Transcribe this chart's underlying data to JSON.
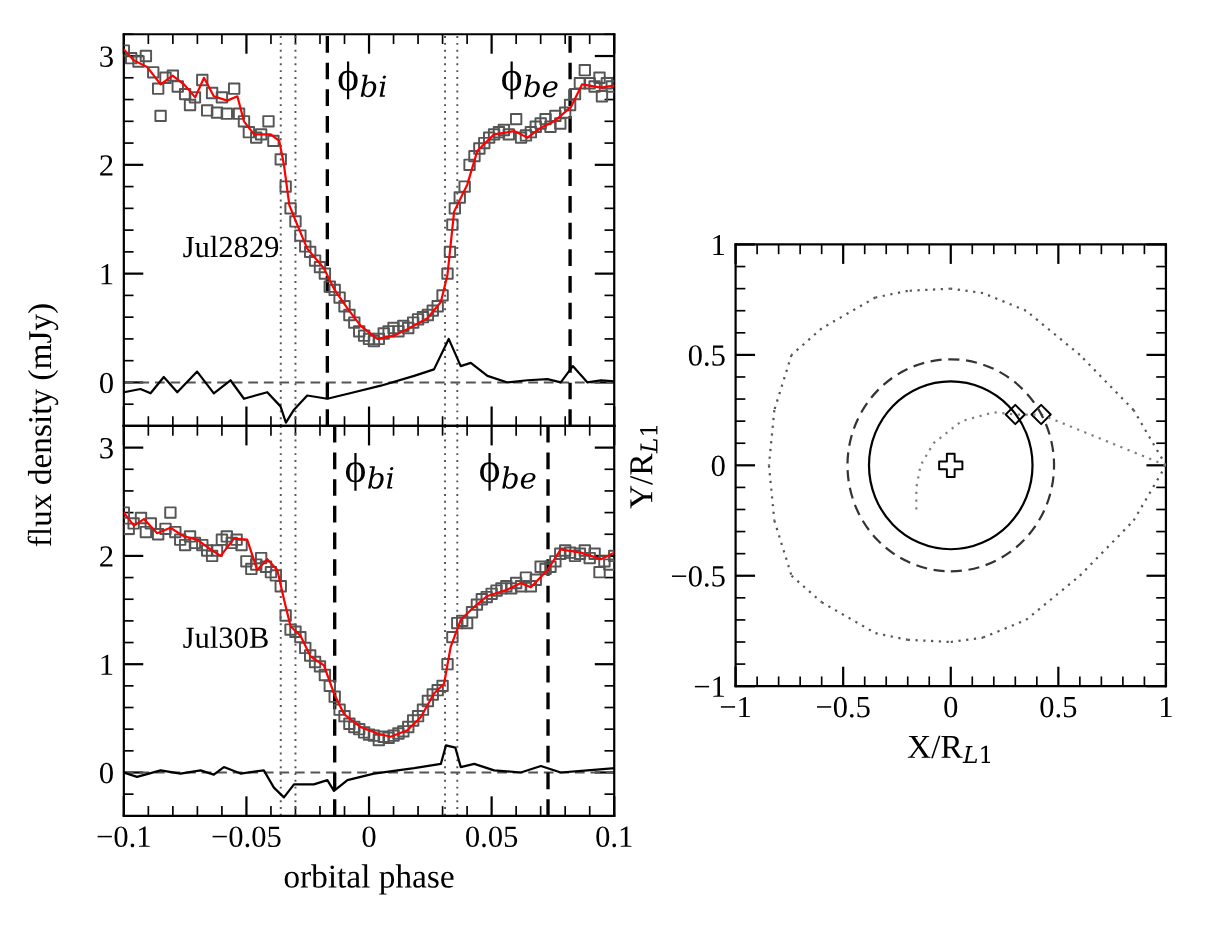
{
  "chart_data": [
    {
      "type": "line",
      "ylabel": "flux density (mJy)",
      "xlim": [
        -0.1,
        0.1
      ],
      "ylim": [
        -0.4,
        3.2
      ],
      "xticks": [
        -0.1,
        -0.05,
        0,
        0.05,
        0.1
      ],
      "yticks": [
        0,
        1,
        2,
        3
      ],
      "tick_labels": "y",
      "grid": false,
      "annotations": [
        "Jul2829"
      ],
      "ref_lines": [
        {
          "axis": "y",
          "value": 0,
          "line_style": "dashed",
          "color": "#555555"
        },
        {
          "axis": "x",
          "value": -0.036,
          "line_style": "dotted",
          "color": "#555555"
        },
        {
          "axis": "x",
          "value": -0.03,
          "line_style": "dotted",
          "color": "#555555"
        },
        {
          "axis": "x",
          "value": 0.031,
          "line_style": "dotted",
          "color": "#555555"
        },
        {
          "axis": "x",
          "value": 0.036,
          "line_style": "dotted",
          "color": "#555555"
        },
        {
          "axis": "x",
          "value": -0.017,
          "line_style": "dashed",
          "color": "#000000",
          "label": "ϕ$_{bi}$"
        },
        {
          "axis": "x",
          "value": 0.082,
          "line_style": "dashed",
          "color": "#000000",
          "label": "ϕ$_{be}$"
        }
      ],
      "series": [
        {
          "type": "scatter",
          "marker": "square",
          "color": "#555555",
          "x": [
            -0.1,
            -0.097,
            -0.094,
            -0.091,
            -0.088,
            -0.086,
            -0.085,
            -0.083,
            -0.08,
            -0.078,
            -0.075,
            -0.073,
            -0.071,
            -0.068,
            -0.066,
            -0.064,
            -0.062,
            -0.06,
            -0.058,
            -0.055,
            -0.053,
            -0.051,
            -0.049,
            -0.046,
            -0.044,
            -0.041,
            -0.039,
            -0.036,
            -0.034,
            -0.032,
            -0.03,
            -0.028,
            -0.026,
            -0.024,
            -0.022,
            -0.02,
            -0.018,
            -0.016,
            -0.014,
            -0.012,
            -0.01,
            -0.008,
            -0.006,
            -0.004,
            -0.002,
            0.0,
            0.002,
            0.004,
            0.006,
            0.008,
            0.01,
            0.012,
            0.014,
            0.016,
            0.018,
            0.02,
            0.022,
            0.024,
            0.026,
            0.028,
            0.03,
            0.032,
            0.033,
            0.034,
            0.035,
            0.037,
            0.039,
            0.041,
            0.043,
            0.045,
            0.047,
            0.049,
            0.051,
            0.053,
            0.055,
            0.057,
            0.06,
            0.062,
            0.064,
            0.066,
            0.068,
            0.07,
            0.072,
            0.074,
            0.076,
            0.078,
            0.08,
            0.082,
            0.084,
            0.086,
            0.088,
            0.09,
            0.092,
            0.094,
            0.095,
            0.097,
            0.099
          ],
          "values": [
            3.05,
            2.98,
            2.95,
            3.0,
            2.85,
            2.7,
            2.45,
            2.8,
            2.82,
            2.72,
            2.65,
            2.55,
            2.62,
            2.78,
            2.5,
            2.66,
            2.48,
            2.62,
            2.47,
            2.7,
            2.47,
            2.4,
            2.3,
            2.25,
            2.28,
            2.4,
            2.22,
            2.05,
            1.8,
            1.6,
            1.48,
            1.35,
            1.25,
            1.2,
            1.12,
            1.06,
            1.0,
            0.88,
            0.85,
            0.78,
            0.7,
            0.62,
            0.55,
            0.47,
            0.43,
            0.4,
            0.38,
            0.4,
            0.45,
            0.47,
            0.5,
            0.47,
            0.52,
            0.5,
            0.55,
            0.58,
            0.6,
            0.62,
            0.66,
            0.7,
            0.8,
            1.0,
            1.2,
            1.45,
            1.6,
            1.7,
            1.8,
            2.0,
            2.08,
            2.15,
            2.2,
            2.25,
            2.28,
            2.3,
            2.32,
            2.28,
            2.42,
            2.25,
            2.27,
            2.3,
            2.35,
            2.38,
            2.42,
            2.35,
            2.45,
            2.38,
            2.48,
            2.55,
            2.65,
            2.75,
            2.87,
            2.75,
            2.72,
            2.8,
            2.63,
            2.75,
            2.72
          ]
        },
        {
          "type": "line",
          "color": "#ff0000",
          "x": [
            -0.1,
            -0.0959,
            -0.0905,
            -0.085,
            -0.0801,
            -0.0755,
            -0.0709,
            -0.0673,
            -0.0633,
            -0.0578,
            -0.0537,
            -0.051,
            -0.0469,
            -0.0401,
            -0.0366,
            -0.0347,
            -0.0325,
            -0.0293,
            -0.0252,
            -0.0184,
            -0.0143,
            -0.0088,
            -0.0034,
            0.0034,
            0.0102,
            0.0156,
            0.0238,
            0.0293,
            0.032,
            0.0347,
            0.0401,
            0.0442,
            0.051,
            0.0592,
            0.0646,
            0.0701,
            0.0755,
            0.0823,
            0.0869,
            0.0946,
            0.1
          ],
          "values": [
            3.06,
            2.96,
            2.9,
            2.74,
            2.82,
            2.74,
            2.62,
            2.8,
            2.63,
            2.59,
            2.63,
            2.4,
            2.28,
            2.28,
            2.22,
            2.0,
            1.63,
            1.45,
            1.23,
            1.05,
            0.86,
            0.68,
            0.52,
            0.4,
            0.43,
            0.49,
            0.59,
            0.74,
            0.99,
            1.57,
            1.82,
            2.13,
            2.28,
            2.31,
            2.25,
            2.34,
            2.4,
            2.53,
            2.74,
            2.71,
            2.73
          ]
        },
        {
          "type": "line",
          "color": "#000000",
          "x": [
            -0.1,
            -0.0932,
            -0.0891,
            -0.0837,
            -0.0782,
            -0.0701,
            -0.0633,
            -0.0565,
            -0.051,
            -0.0415,
            -0.0361,
            -0.0339,
            -0.0306,
            -0.0252,
            -0.017,
            -0.0061,
            0.0048,
            0.0184,
            0.0265,
            0.0325,
            0.0374,
            0.0415,
            0.0483,
            0.0565,
            0.0646,
            0.0728,
            0.0782,
            0.0831,
            0.0891,
            0.0946,
            0.1
          ],
          "values": [
            -0.09,
            -0.06,
            -0.1,
            0.05,
            -0.09,
            0.1,
            -0.1,
            0.02,
            -0.15,
            -0.09,
            -0.22,
            -0.37,
            -0.25,
            -0.12,
            -0.15,
            -0.09,
            -0.03,
            0.06,
            0.12,
            0.4,
            0.15,
            0.18,
            0.06,
            0.0,
            0.02,
            0.03,
            0.0,
            0.15,
            0.0,
            0.02,
            0.01
          ]
        }
      ]
    },
    {
      "type": "line",
      "xlabel": "orbital phase",
      "xlim": [
        -0.1,
        0.1
      ],
      "ylim": [
        -0.4,
        3.2
      ],
      "xticks": [
        {
          "value": -0.1,
          "label": "−0.1"
        },
        {
          "value": -0.05,
          "label": "−0.05"
        },
        0,
        0.05,
        0.1
      ],
      "yticks": [
        0,
        1,
        2,
        3
      ],
      "grid": false,
      "annotations": [
        "Jul30B"
      ],
      "ref_lines": [
        {
          "axis": "y",
          "value": 0,
          "line_style": "dashed",
          "color": "#555555"
        },
        {
          "axis": "x",
          "value": -0.036,
          "line_style": "dotted",
          "color": "#555555"
        },
        {
          "axis": "x",
          "value": -0.03,
          "line_style": "dotted",
          "color": "#555555"
        },
        {
          "axis": "x",
          "value": 0.031,
          "line_style": "dotted",
          "color": "#555555"
        },
        {
          "axis": "x",
          "value": 0.036,
          "line_style": "dotted",
          "color": "#555555"
        },
        {
          "axis": "x",
          "value": -0.014,
          "line_style": "dashed",
          "color": "#000000",
          "label": "ϕ$_{bi}$"
        },
        {
          "axis": "x",
          "value": 0.073,
          "line_style": "dashed",
          "color": "#000000",
          "label": "ϕ$_{be}$"
        }
      ],
      "series": [
        {
          "type": "scatter",
          "marker": "square",
          "color": "#555555",
          "x": [
            -0.1,
            -0.098,
            -0.096,
            -0.093,
            -0.091,
            -0.089,
            -0.086,
            -0.083,
            -0.081,
            -0.079,
            -0.077,
            -0.075,
            -0.073,
            -0.071,
            -0.068,
            -0.066,
            -0.064,
            -0.062,
            -0.06,
            -0.058,
            -0.056,
            -0.054,
            -0.052,
            -0.05,
            -0.048,
            -0.046,
            -0.044,
            -0.042,
            -0.04,
            -0.038,
            -0.036,
            -0.034,
            -0.032,
            -0.03,
            -0.028,
            -0.026,
            -0.024,
            -0.022,
            -0.02,
            -0.018,
            -0.016,
            -0.014,
            -0.012,
            -0.01,
            -0.008,
            -0.006,
            -0.004,
            -0.002,
            0.0,
            0.002,
            0.004,
            0.006,
            0.008,
            0.01,
            0.012,
            0.014,
            0.016,
            0.018,
            0.02,
            0.022,
            0.024,
            0.026,
            0.028,
            0.03,
            0.032,
            0.034,
            0.036,
            0.038,
            0.04,
            0.042,
            0.044,
            0.046,
            0.048,
            0.05,
            0.052,
            0.054,
            0.056,
            0.058,
            0.06,
            0.062,
            0.064,
            0.066,
            0.068,
            0.07,
            0.072,
            0.074,
            0.076,
            0.078,
            0.08,
            0.082,
            0.084,
            0.086,
            0.088,
            0.09,
            0.092,
            0.094,
            0.096,
            0.098,
            0.1
          ],
          "values": [
            2.4,
            2.25,
            2.3,
            2.35,
            2.22,
            2.3,
            2.2,
            2.25,
            2.4,
            2.22,
            2.15,
            2.1,
            2.18,
            2.12,
            2.1,
            2.05,
            2.0,
            2.05,
            2.15,
            2.18,
            2.12,
            2.15,
            2.1,
            1.95,
            1.88,
            1.92,
            1.98,
            1.9,
            1.85,
            1.82,
            1.72,
            1.45,
            1.32,
            1.3,
            1.25,
            1.15,
            1.08,
            1.02,
            0.98,
            0.9,
            0.8,
            0.7,
            0.58,
            0.52,
            0.45,
            0.42,
            0.4,
            0.37,
            0.35,
            0.34,
            0.3,
            0.33,
            0.32,
            0.34,
            0.36,
            0.38,
            0.42,
            0.48,
            0.52,
            0.58,
            0.66,
            0.72,
            0.76,
            0.8,
            1.0,
            1.25,
            1.38,
            1.4,
            1.38,
            1.48,
            1.55,
            1.6,
            1.62,
            1.65,
            1.68,
            1.7,
            1.72,
            1.7,
            1.75,
            1.72,
            1.8,
            1.72,
            1.78,
            1.9,
            1.88,
            1.9,
            1.95,
            2.02,
            2.05,
            2.03,
            2.0,
            2.02,
            2.05,
            1.98,
            2.02,
            1.85,
            1.95,
            1.92,
            2.0
          ]
        },
        {
          "type": "line",
          "color": "#ff0000",
          "x": [
            -0.1,
            -0.0959,
            -0.0918,
            -0.0864,
            -0.081,
            -0.0755,
            -0.0701,
            -0.0646,
            -0.0605,
            -0.0551,
            -0.0497,
            -0.0456,
            -0.0415,
            -0.0374,
            -0.0347,
            -0.032,
            -0.0279,
            -0.0238,
            -0.0184,
            -0.0143,
            -0.0102,
            -0.0034,
            0.0034,
            0.0088,
            0.0156,
            0.0211,
            0.0265,
            0.0306,
            0.0333,
            0.0374,
            0.0429,
            0.0483,
            0.0565,
            0.0619,
            0.066,
            0.0728,
            0.0782,
            0.0864,
            0.0946,
            0.1
          ],
          "values": [
            2.4,
            2.28,
            2.34,
            2.21,
            2.26,
            2.18,
            2.15,
            2.06,
            2.0,
            2.16,
            2.15,
            1.87,
            1.97,
            1.87,
            1.6,
            1.35,
            1.26,
            1.07,
            0.99,
            0.73,
            0.54,
            0.42,
            0.36,
            0.33,
            0.39,
            0.51,
            0.73,
            0.82,
            1.16,
            1.41,
            1.53,
            1.63,
            1.69,
            1.75,
            1.71,
            1.87,
            2.06,
            2.03,
            1.97,
            2.03
          ]
        },
        {
          "type": "line",
          "color": "#000000",
          "x": [
            -0.1,
            -0.0946,
            -0.085,
            -0.0769,
            -0.0687,
            -0.0633,
            -0.0592,
            -0.0524,
            -0.0429,
            -0.0388,
            -0.0347,
            -0.0306,
            -0.0225,
            -0.017,
            -0.0143,
            -0.0088,
            0.002,
            0.0184,
            0.0293,
            0.0314,
            0.0352,
            0.0374,
            0.0429,
            0.051,
            0.0619,
            0.0701,
            0.0782,
            0.0891,
            0.1
          ],
          "values": [
            0.0,
            -0.04,
            0.02,
            -0.01,
            0.02,
            -0.02,
            0.05,
            -0.01,
            0.02,
            -0.14,
            -0.23,
            -0.11,
            -0.11,
            -0.07,
            -0.17,
            -0.07,
            -0.01,
            0.04,
            0.08,
            0.25,
            0.23,
            0.05,
            0.08,
            0.02,
            0.0,
            0.06,
            0.0,
            0.02,
            0.04
          ]
        }
      ]
    },
    {
      "type": "line",
      "xlabel": "X/R$_{L1}$",
      "ylabel": "Y/R$_{L1}$",
      "xlim": [
        -1,
        1
      ],
      "ylim": [
        -1,
        1
      ],
      "xticks": [
        {
          "value": -1,
          "label": "−1"
        },
        {
          "value": -0.5,
          "label": "−0.5"
        },
        0,
        0.5,
        1
      ],
      "yticks": [
        {
          "value": -1,
          "label": "−1"
        },
        {
          "value": -0.5,
          "label": "−0.5"
        },
        0,
        0.5,
        1
      ],
      "grid": false,
      "series": [
        {
          "type": "line",
          "line_style": "dotted",
          "color": "#808080",
          "x": [
            -0.16,
            -0.16,
            -0.14,
            -0.08,
            0.05,
            0.2,
            0.3,
            0.42,
            1
          ],
          "values": [
            -0.2,
            -0.1,
            0,
            0.1,
            0.2,
            0.24,
            0.23,
            0.23,
            0
          ]
        },
        {
          "type": "scatter",
          "marker": "diamond",
          "color": "#000000",
          "x": [
            0.3,
            0.42
          ],
          "values": [
            0.23,
            0.23
          ]
        },
        {
          "type": "scatter",
          "marker": "cross",
          "color": "#000000",
          "x": [
            0
          ],
          "values": [
            0
          ]
        }
      ]
    }
  ]
}
